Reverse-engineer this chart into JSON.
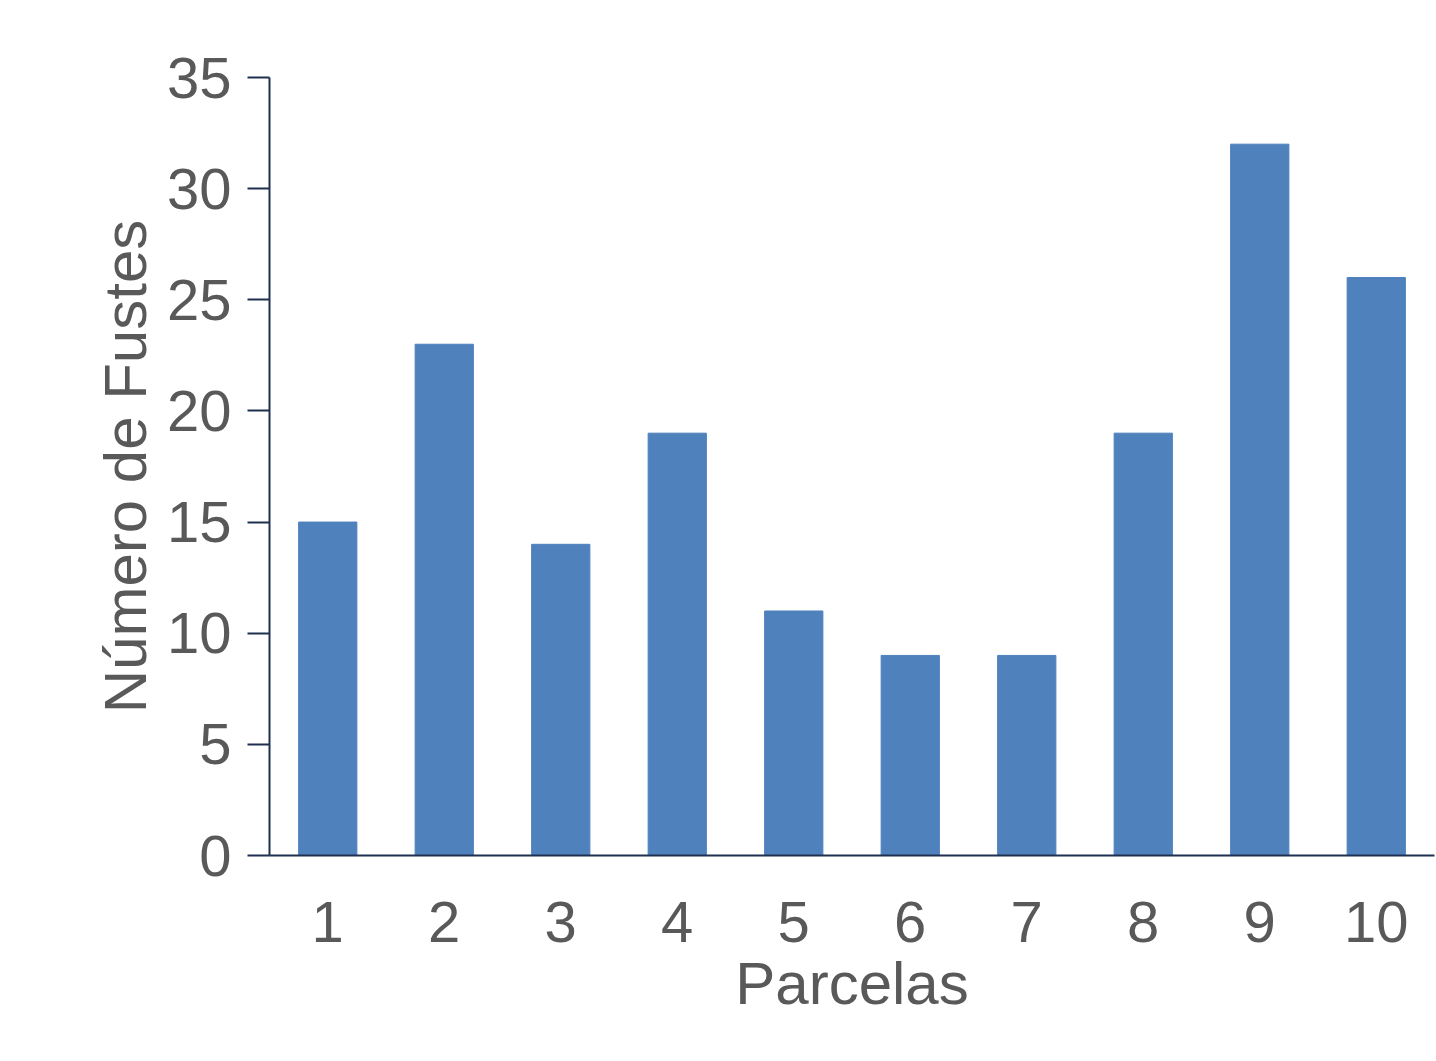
{
  "chart_data": {
    "type": "bar",
    "xlabel": "Parcelas",
    "ylabel": "Número de Fustes",
    "categories": [
      "1",
      "2",
      "3",
      "4",
      "5",
      "6",
      "7",
      "8",
      "9",
      "10"
    ],
    "values": [
      15,
      23,
      14,
      19,
      11,
      9,
      9,
      19,
      32,
      26
    ],
    "color": "#4f81bd",
    "ylim": [
      0,
      35
    ],
    "yticks": [
      0,
      5,
      10,
      15,
      20,
      25,
      30,
      35
    ]
  }
}
